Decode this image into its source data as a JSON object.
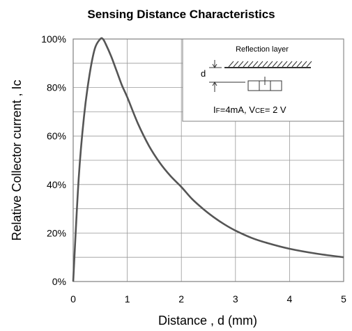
{
  "chart_data": {
    "type": "line",
    "title": "Sensing Distance Characteristics",
    "xlabel": "Distance , d (mm)",
    "ylabel": "Relative Collector current , Ic",
    "xlim": [
      0,
      5
    ],
    "ylim": [
      0,
      100
    ],
    "x_ticks": [
      "0",
      "1",
      "2",
      "3",
      "4",
      "5"
    ],
    "y_ticks": [
      "0%",
      "20%",
      "40%",
      "60%",
      "80%",
      "100%"
    ],
    "grid": true,
    "series": [
      {
        "x": [
          0,
          0.1,
          0.2,
          0.3,
          0.4,
          0.5,
          0.55,
          0.6,
          0.7,
          0.8,
          0.9,
          1.0,
          1.2,
          1.4,
          1.6,
          1.8,
          2.0,
          2.2,
          2.4,
          2.6,
          2.8,
          3.0,
          3.3,
          3.6,
          4.0,
          4.5,
          5.0
        ],
        "y": [
          0,
          42,
          68,
          85,
          96,
          100,
          100,
          98,
          93,
          87,
          81,
          76,
          65,
          56,
          49,
          43.5,
          39,
          34,
          30,
          26.5,
          23.5,
          21,
          18,
          15.8,
          13.5,
          11.5,
          10
        ]
      }
    ],
    "inset": {
      "title": "Reflection layer",
      "d_label": "d",
      "condition_if": "I",
      "condition_if_sub": "F",
      "condition_if_val": "=4mA, V",
      "condition_vce_sub": "CE",
      "condition_vce_val": "= 2 V"
    },
    "colors": {
      "line": "#555555",
      "grid": "#999999",
      "axis": "#808080"
    }
  }
}
